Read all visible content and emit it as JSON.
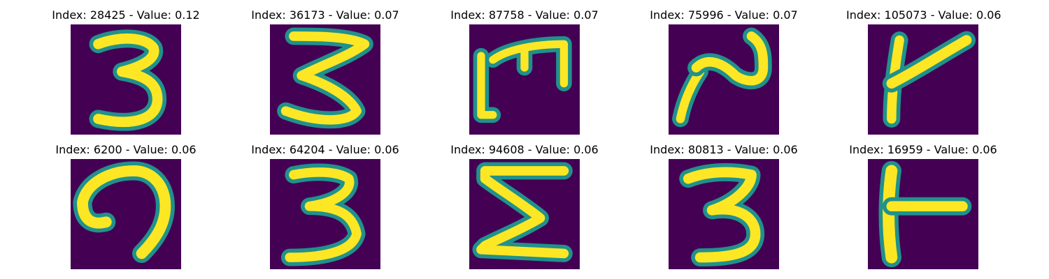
{
  "colors": {
    "background": "#440154",
    "edge": "#21918c",
    "stroke": "#fde725"
  },
  "panels": [
    {
      "title": "Index: 28425 - Value: 0.12",
      "glyph": "3"
    },
    {
      "title": "Index: 36173 - Value: 0.07",
      "glyph": "3-wide"
    },
    {
      "title": "Index: 87758 - Value: 0.07",
      "glyph": "m-rotated"
    },
    {
      "title": "Index: 75996 - Value: 0.07",
      "glyph": "n-shape"
    },
    {
      "title": "Index: 105073 - Value: 0.06",
      "glyph": "k-shape"
    },
    {
      "title": "Index: 6200 - Value: 0.06",
      "glyph": "hook"
    },
    {
      "title": "Index: 64204 - Value: 0.06",
      "glyph": "3"
    },
    {
      "title": "Index: 94608 - Value: 0.06",
      "glyph": "sigma"
    },
    {
      "title": "Index: 80813 - Value: 0.06",
      "glyph": "3"
    },
    {
      "title": "Index: 16959 - Value: 0.06",
      "glyph": "t-rotated"
    }
  ]
}
